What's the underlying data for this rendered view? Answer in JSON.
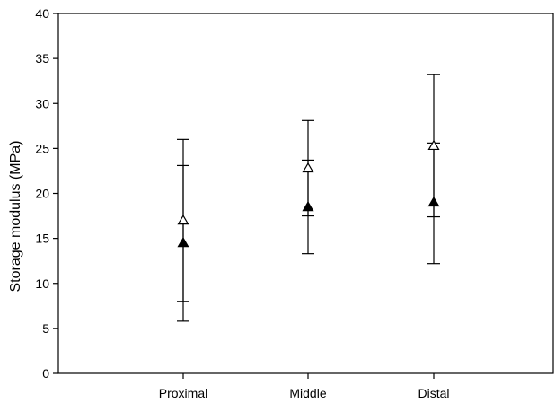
{
  "chart_data": {
    "type": "scatter",
    "title": "",
    "xlabel": "",
    "ylabel": "Storage modulus (MPa)",
    "categories": [
      "Proximal",
      "Middle",
      "Distal"
    ],
    "ylim": [
      0,
      40
    ],
    "yticks": [
      0,
      5,
      10,
      15,
      20,
      25,
      30,
      35,
      40
    ],
    "grid": false,
    "legend": "none",
    "series": [
      {
        "marker": "filled-triangle",
        "color": "#000000",
        "values": [
          14.5,
          18.5,
          19.0
        ],
        "err_low": [
          8.0,
          13.3,
          12.2
        ],
        "err_high": [
          23.1,
          23.7,
          25.6
        ]
      },
      {
        "marker": "open-triangle",
        "color": "#000000",
        "values": [
          17.0,
          22.8,
          25.3
        ],
        "err_low": [
          5.8,
          17.5,
          17.4
        ],
        "err_high": [
          26.0,
          28.1,
          33.2
        ]
      }
    ]
  }
}
